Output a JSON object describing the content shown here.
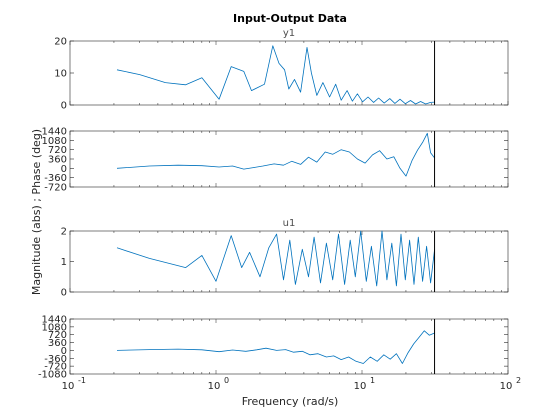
{
  "figure": {
    "title": "Input-Output Data",
    "xlabel": "Frequency  (rad/s)",
    "ylabel": "Magnitude (abs) ; Phase (deg)"
  },
  "colors": {
    "line": "#0072BD",
    "axes": "#262626",
    "marker_line": "#000000"
  },
  "chart_data": {
    "type": "line",
    "x_scale": "log",
    "x_range": [
      0.1,
      100
    ],
    "x_ticks": [
      0.1,
      1,
      10,
      100
    ],
    "x_tick_labels": [
      "10",
      "10",
      "10",
      "10"
    ],
    "x_tick_exponents": [
      "-1",
      "0",
      "1",
      "2"
    ],
    "nyquist_line_x": 31.4,
    "panels": [
      {
        "id": "y1-magnitude",
        "subtitle": "y1",
        "ylim": [
          0,
          20
        ],
        "y_ticks": [
          0,
          10,
          20
        ],
        "y_tick_labels": [
          "0",
          "10",
          "20"
        ],
        "x": [
          0.21,
          0.3,
          0.45,
          0.62,
          0.8,
          1.05,
          1.27,
          1.55,
          1.75,
          2.15,
          2.45,
          2.7,
          2.95,
          3.15,
          3.45,
          3.8,
          4.2,
          4.5,
          4.9,
          5.4,
          6.0,
          6.6,
          7.2,
          7.9,
          8.6,
          9.3,
          10.1,
          11.0,
          12.0,
          13.0,
          14.2,
          15.5,
          16.8,
          18.2,
          19.8,
          21.5,
          23.3,
          25.2,
          27.3,
          29.5,
          31.4
        ],
        "y": [
          11,
          9.5,
          7,
          6.3,
          8.5,
          1.8,
          12,
          10.5,
          4.5,
          6.5,
          18.5,
          13,
          11,
          5,
          8,
          4,
          18,
          10,
          3,
          7,
          2.5,
          6.5,
          1.5,
          4.5,
          1.2,
          3.5,
          1,
          2.5,
          0.8,
          2.2,
          0.6,
          2.0,
          0.5,
          1.8,
          0.4,
          1.4,
          0.3,
          1.1,
          0.3,
          0.8,
          0.9
        ]
      },
      {
        "id": "y1-phase",
        "subtitle": "",
        "ylim": [
          -720,
          1440
        ],
        "y_ticks": [
          -720,
          -360,
          0,
          360,
          720,
          1080,
          1440
        ],
        "y_tick_labels": [
          "-720",
          "-360",
          "0",
          "360",
          "720",
          "1080",
          "1440"
        ],
        "x": [
          0.21,
          0.35,
          0.55,
          0.8,
          1.05,
          1.3,
          1.55,
          1.8,
          2.1,
          2.5,
          2.9,
          3.3,
          3.8,
          4.3,
          4.9,
          5.6,
          6.3,
          7.2,
          8.2,
          9.3,
          10.5,
          11.8,
          13.2,
          14.8,
          16.5,
          18.2,
          20.0,
          22.0,
          24.0,
          26.0,
          28.0,
          29.5,
          31.4
        ],
        "y": [
          0,
          90,
          120,
          100,
          50,
          90,
          -30,
          30,
          90,
          170,
          120,
          270,
          150,
          430,
          240,
          630,
          540,
          720,
          630,
          360,
          200,
          520,
          680,
          360,
          450,
          0,
          -300,
          300,
          700,
          1000,
          1350,
          600,
          400
        ]
      },
      {
        "id": "u1-magnitude",
        "subtitle": "u1",
        "ylim": [
          0,
          2
        ],
        "y_ticks": [
          0,
          1,
          2
        ],
        "y_tick_labels": [
          "0",
          "1",
          "2"
        ],
        "x": [
          0.21,
          0.35,
          0.62,
          0.8,
          1.0,
          1.27,
          1.5,
          1.7,
          2.0,
          2.3,
          2.6,
          2.9,
          3.2,
          3.5,
          3.9,
          4.3,
          4.7,
          5.2,
          5.7,
          6.3,
          6.9,
          7.6,
          8.3,
          9.0,
          9.8,
          10.7,
          11.6,
          12.6,
          13.7,
          14.8,
          16.0,
          17.2,
          18.5,
          19.8,
          21.2,
          22.7,
          24.3,
          26.0,
          27.7,
          29.5,
          31.4
        ],
        "y": [
          1.45,
          1.1,
          0.8,
          1.2,
          0.35,
          1.85,
          0.8,
          1.3,
          0.5,
          1.45,
          1.9,
          0.4,
          1.7,
          0.25,
          1.4,
          0.5,
          1.8,
          0.3,
          1.6,
          0.4,
          1.9,
          0.25,
          1.7,
          0.5,
          2.0,
          0.35,
          1.5,
          0.2,
          2.1,
          0.4,
          1.6,
          0.2,
          1.9,
          0.4,
          1.7,
          0.25,
          1.8,
          0.35,
          1.5,
          0.3,
          1.4
        ]
      },
      {
        "id": "u1-phase",
        "subtitle": "",
        "ylim": [
          -1080,
          1440
        ],
        "y_ticks": [
          -1080,
          -720,
          -360,
          0,
          360,
          720,
          1080,
          1440
        ],
        "y_tick_labels": [
          "-1080",
          "-720",
          "-360",
          "0",
          "360",
          "720",
          "1080",
          "1440"
        ],
        "x": [
          0.21,
          0.35,
          0.55,
          0.8,
          1.05,
          1.3,
          1.6,
          1.9,
          2.2,
          2.6,
          3.0,
          3.4,
          3.9,
          4.4,
          5.0,
          5.7,
          6.4,
          7.2,
          8.1,
          9.1,
          10.2,
          11.4,
          12.7,
          14.1,
          15.6,
          17.2,
          18.9,
          20.7,
          22.6,
          24.6,
          26.7,
          28.9,
          31.4
        ],
        "y": [
          0,
          40,
          60,
          30,
          -60,
          20,
          -40,
          30,
          100,
          0,
          40,
          -80,
          -40,
          -200,
          -150,
          -300,
          -250,
          -420,
          -300,
          -500,
          -600,
          -300,
          -500,
          -200,
          -400,
          -150,
          -600,
          -100,
          300,
          600,
          900,
          700,
          800
        ]
      }
    ]
  }
}
